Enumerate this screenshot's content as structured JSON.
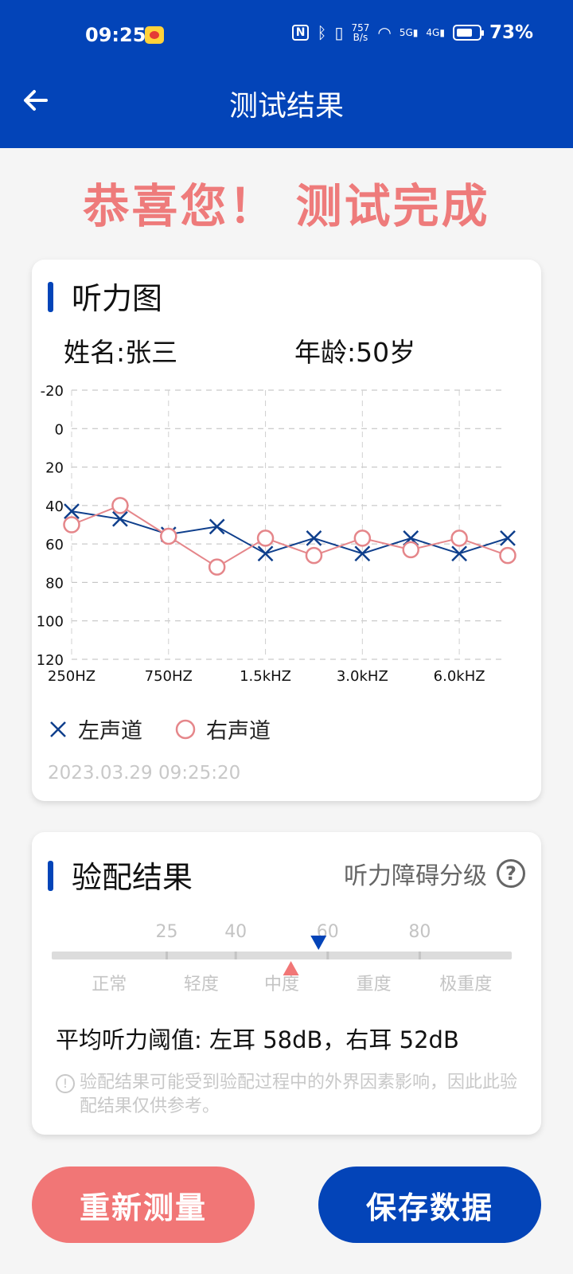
{
  "status_bar": {
    "time": "09:25",
    "nfc": "N",
    "net_speed_top": "757",
    "net_speed_bottom": "B/s",
    "signal_5g": "5G",
    "signal_4g": "4G",
    "battery_pct": "73%",
    "battery_level": 0.73
  },
  "header": {
    "title": "测试结果"
  },
  "congrats": "恭喜您！ 测试完成",
  "audiogram": {
    "section_title": "听力图",
    "name_label": "姓名:张三",
    "age_label": "年龄:50岁",
    "timestamp": "2023.03.29 09:25:20",
    "legend": {
      "left": "左声道",
      "right": "右声道"
    }
  },
  "chart_data": {
    "type": "line",
    "y_ticks": [
      "-20",
      "0",
      "20",
      "40",
      "60",
      "80",
      "100",
      "120"
    ],
    "ylim": [
      -20,
      120
    ],
    "y_inverted": true,
    "x_tick_labels": [
      "250HZ",
      "750HZ",
      "1.5kHZ",
      "3.0kHZ",
      "6.0kHZ"
    ],
    "x_positions": 10,
    "grid": true,
    "series": [
      {
        "name": "左声道",
        "marker": "x",
        "color": "#0f3f8c",
        "values": [
          43,
          47,
          55,
          51,
          65,
          57,
          65,
          57,
          65,
          57
        ]
      },
      {
        "name": "右声道",
        "marker": "o",
        "color": "#e5868a",
        "values": [
          50,
          40,
          56,
          72,
          57,
          66,
          57,
          63,
          57,
          66
        ]
      }
    ]
  },
  "fitting": {
    "section_title": "验配结果",
    "help_label": "听力障碍分级",
    "help_icon": "question-circle-icon",
    "scale_ticks": [
      "25",
      "40",
      "60",
      "80"
    ],
    "scale_tick_values": [
      25,
      40,
      60,
      80
    ],
    "scale_min": 0,
    "scale_max": 100,
    "categories": [
      "正常",
      "轻度",
      "中度",
      "重度",
      "极重度"
    ],
    "left_ear_db": 58,
    "right_ear_db": 52,
    "avg_text": "平均听力阈值: 左耳 58dB，右耳 52dB",
    "note": "验配结果可能受到验配过程中的外界因素影响，因此此验配结果仅供参考。"
  },
  "buttons": {
    "retest": "重新测量",
    "save": "保存数据"
  },
  "colors": {
    "brand": "#0344b8",
    "accent": "#f17676"
  }
}
